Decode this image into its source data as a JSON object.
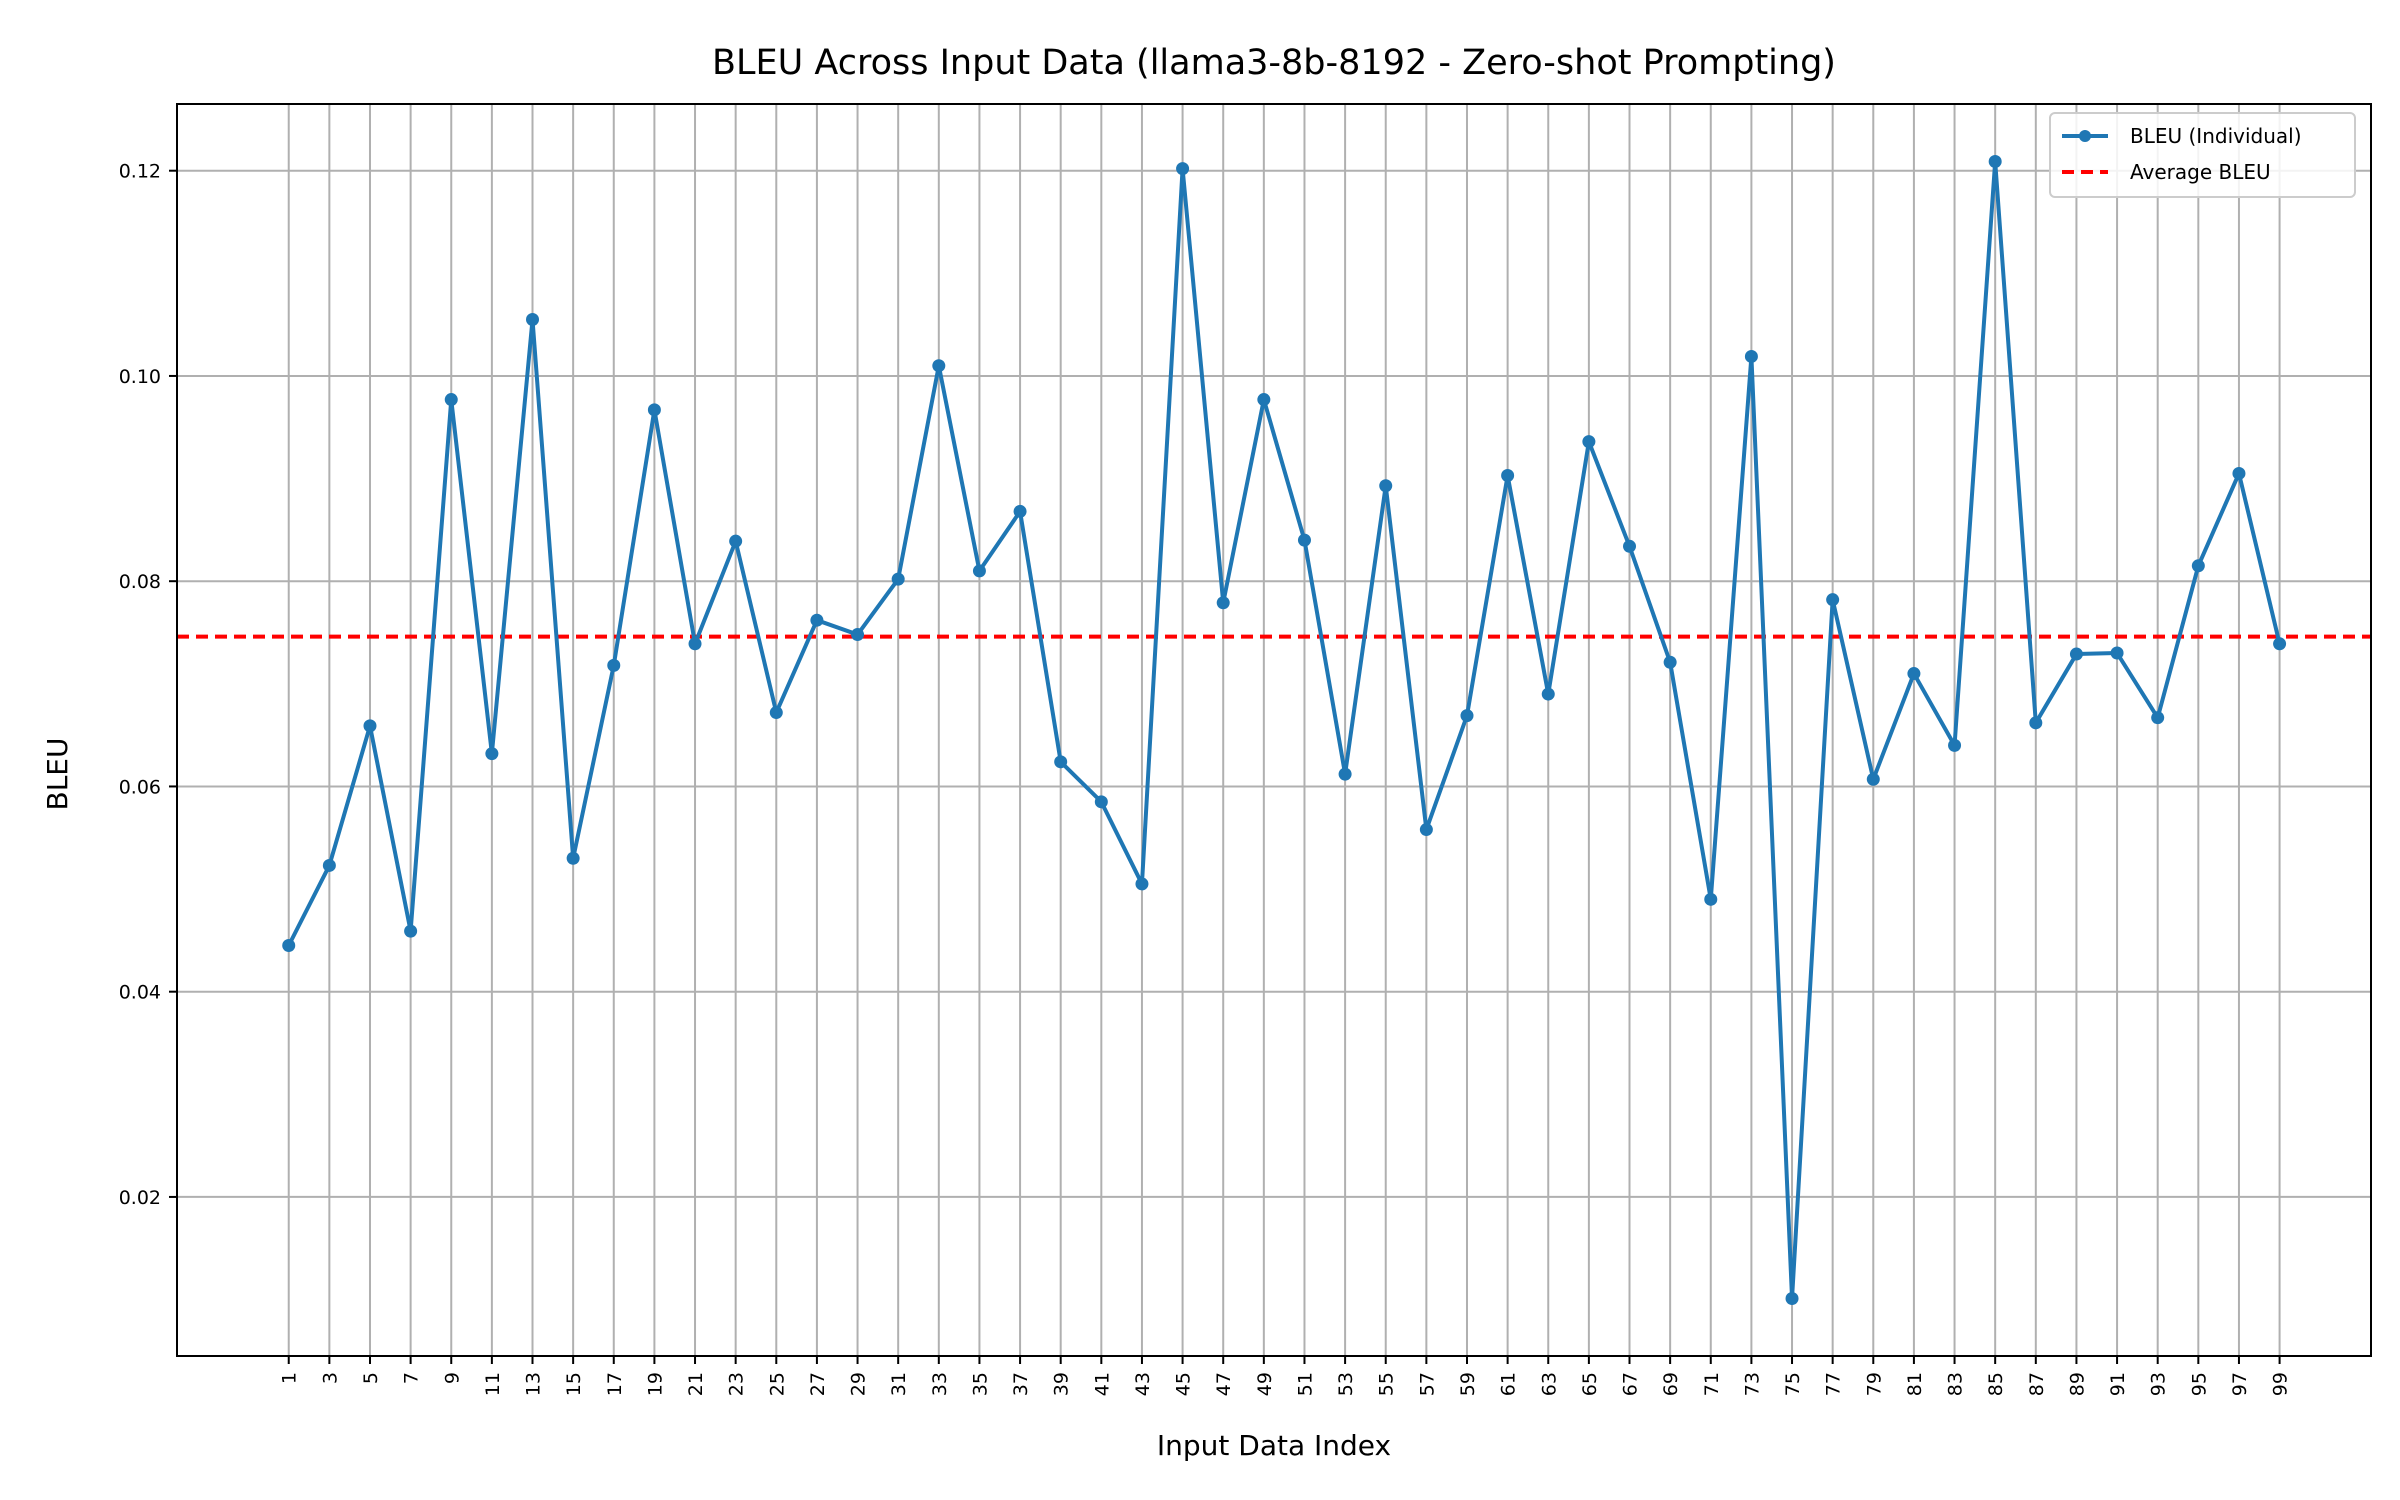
{
  "chart_data": {
    "type": "line",
    "title": "BLEU Across Input Data (llama3-8b-8192 - Zero-shot Prompting)",
    "xlabel": "Input Data Index",
    "ylabel": "BLEU",
    "x": [
      1,
      3,
      5,
      7,
      9,
      11,
      13,
      15,
      17,
      19,
      21,
      23,
      25,
      27,
      29,
      31,
      33,
      35,
      37,
      39,
      41,
      43,
      45,
      47,
      49,
      51,
      53,
      55,
      57,
      59,
      61,
      63,
      65,
      67,
      69,
      71,
      73,
      75,
      77,
      79,
      81,
      83,
      85,
      87,
      89,
      91,
      93,
      95,
      97,
      99
    ],
    "xticks": [
      "1",
      "3",
      "5",
      "7",
      "9",
      "11",
      "13",
      "15",
      "17",
      "19",
      "21",
      "23",
      "25",
      "27",
      "29",
      "31",
      "33",
      "35",
      "37",
      "39",
      "41",
      "43",
      "45",
      "47",
      "49",
      "51",
      "53",
      "55",
      "57",
      "59",
      "61",
      "63",
      "65",
      "67",
      "69",
      "71",
      "73",
      "75",
      "77",
      "79",
      "81",
      "83",
      "85",
      "87",
      "89",
      "91",
      "93",
      "95",
      "97",
      "99"
    ],
    "yticks": [
      "0.02",
      "0.04",
      "0.06",
      "0.08",
      "0.10",
      "0.12"
    ],
    "ytick_values": [
      0.02,
      0.04,
      0.06,
      0.08,
      0.1,
      0.12
    ],
    "xlim": [
      -4.5,
      103.5
    ],
    "ylim": [
      0.0045,
      0.1265
    ],
    "series": [
      {
        "name": "BLEU (Individual)",
        "color": "#1f77b4",
        "marker": "circle",
        "values": [
          0.0445,
          0.0523,
          0.0659,
          0.0459,
          0.0977,
          0.0632,
          0.1055,
          0.053,
          0.0718,
          0.0967,
          0.0739,
          0.0839,
          0.0672,
          0.0762,
          0.0748,
          0.0802,
          0.101,
          0.081,
          0.0868,
          0.0624,
          0.0585,
          0.0505,
          0.1202,
          0.0779,
          0.0977,
          0.084,
          0.0612,
          0.0893,
          0.0558,
          0.0669,
          0.0903,
          0.069,
          0.0936,
          0.0834,
          0.0721,
          0.049,
          0.1019,
          0.0101,
          0.0782,
          0.0607,
          0.071,
          0.064,
          0.1209,
          0.0662,
          0.0729,
          0.073,
          0.0667,
          0.0815,
          0.0905,
          0.0739
        ]
      }
    ],
    "average": {
      "name": "Average BLEU",
      "value": 0.0746,
      "color": "#ff0000",
      "style": "dashed"
    },
    "grid": true,
    "legend_position": "top-right"
  }
}
